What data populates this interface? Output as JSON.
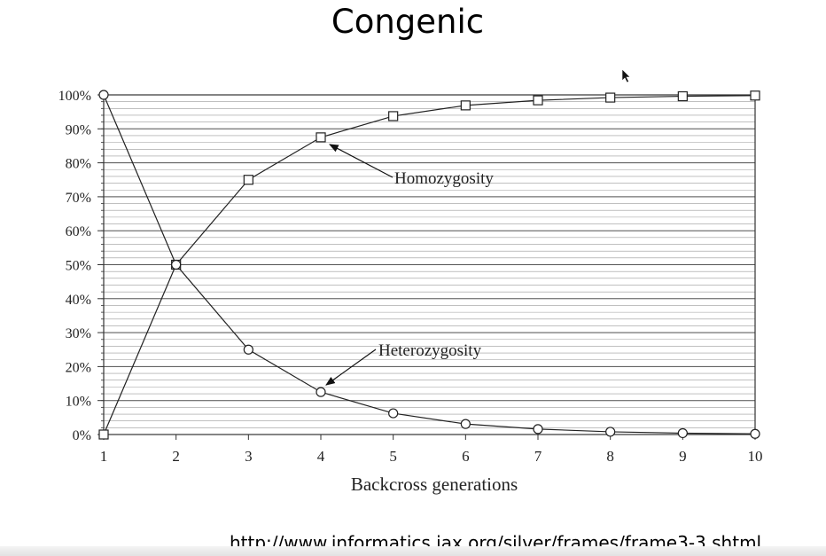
{
  "slide": {
    "title": "Congenic",
    "footer_url": "http://www.informatics.jax.org/silver/frames/frame3-3.shtml"
  },
  "cursor_icon": "mouse-pointer-icon",
  "chart_data": {
    "type": "line",
    "title": "",
    "xlabel": "Backcross generations",
    "ylabel": "",
    "x": [
      1,
      2,
      3,
      4,
      5,
      6,
      7,
      8,
      9,
      10
    ],
    "xlim": [
      1,
      10
    ],
    "ylim": [
      0,
      100
    ],
    "y_ticks": [
      "0%",
      "10%",
      "20%",
      "30%",
      "40%",
      "50%",
      "60%",
      "70%",
      "80%",
      "90%",
      "100%"
    ],
    "grid": true,
    "series": [
      {
        "name": "Homozygosity",
        "marker": "square",
        "values": [
          0,
          50,
          75,
          87.5,
          93.75,
          96.9,
          98.4,
          99.2,
          99.6,
          99.8
        ]
      },
      {
        "name": "Heterozygosity",
        "marker": "circle",
        "values": [
          100,
          50,
          25,
          12.5,
          6.25,
          3.1,
          1.6,
          0.8,
          0.4,
          0.2
        ]
      }
    ],
    "annotations": [
      {
        "label": "Homozygosity",
        "series": "Homozygosity",
        "x": 4
      },
      {
        "label": "Heterozygosity",
        "series": "Heterozygosity",
        "x": 4
      }
    ]
  }
}
